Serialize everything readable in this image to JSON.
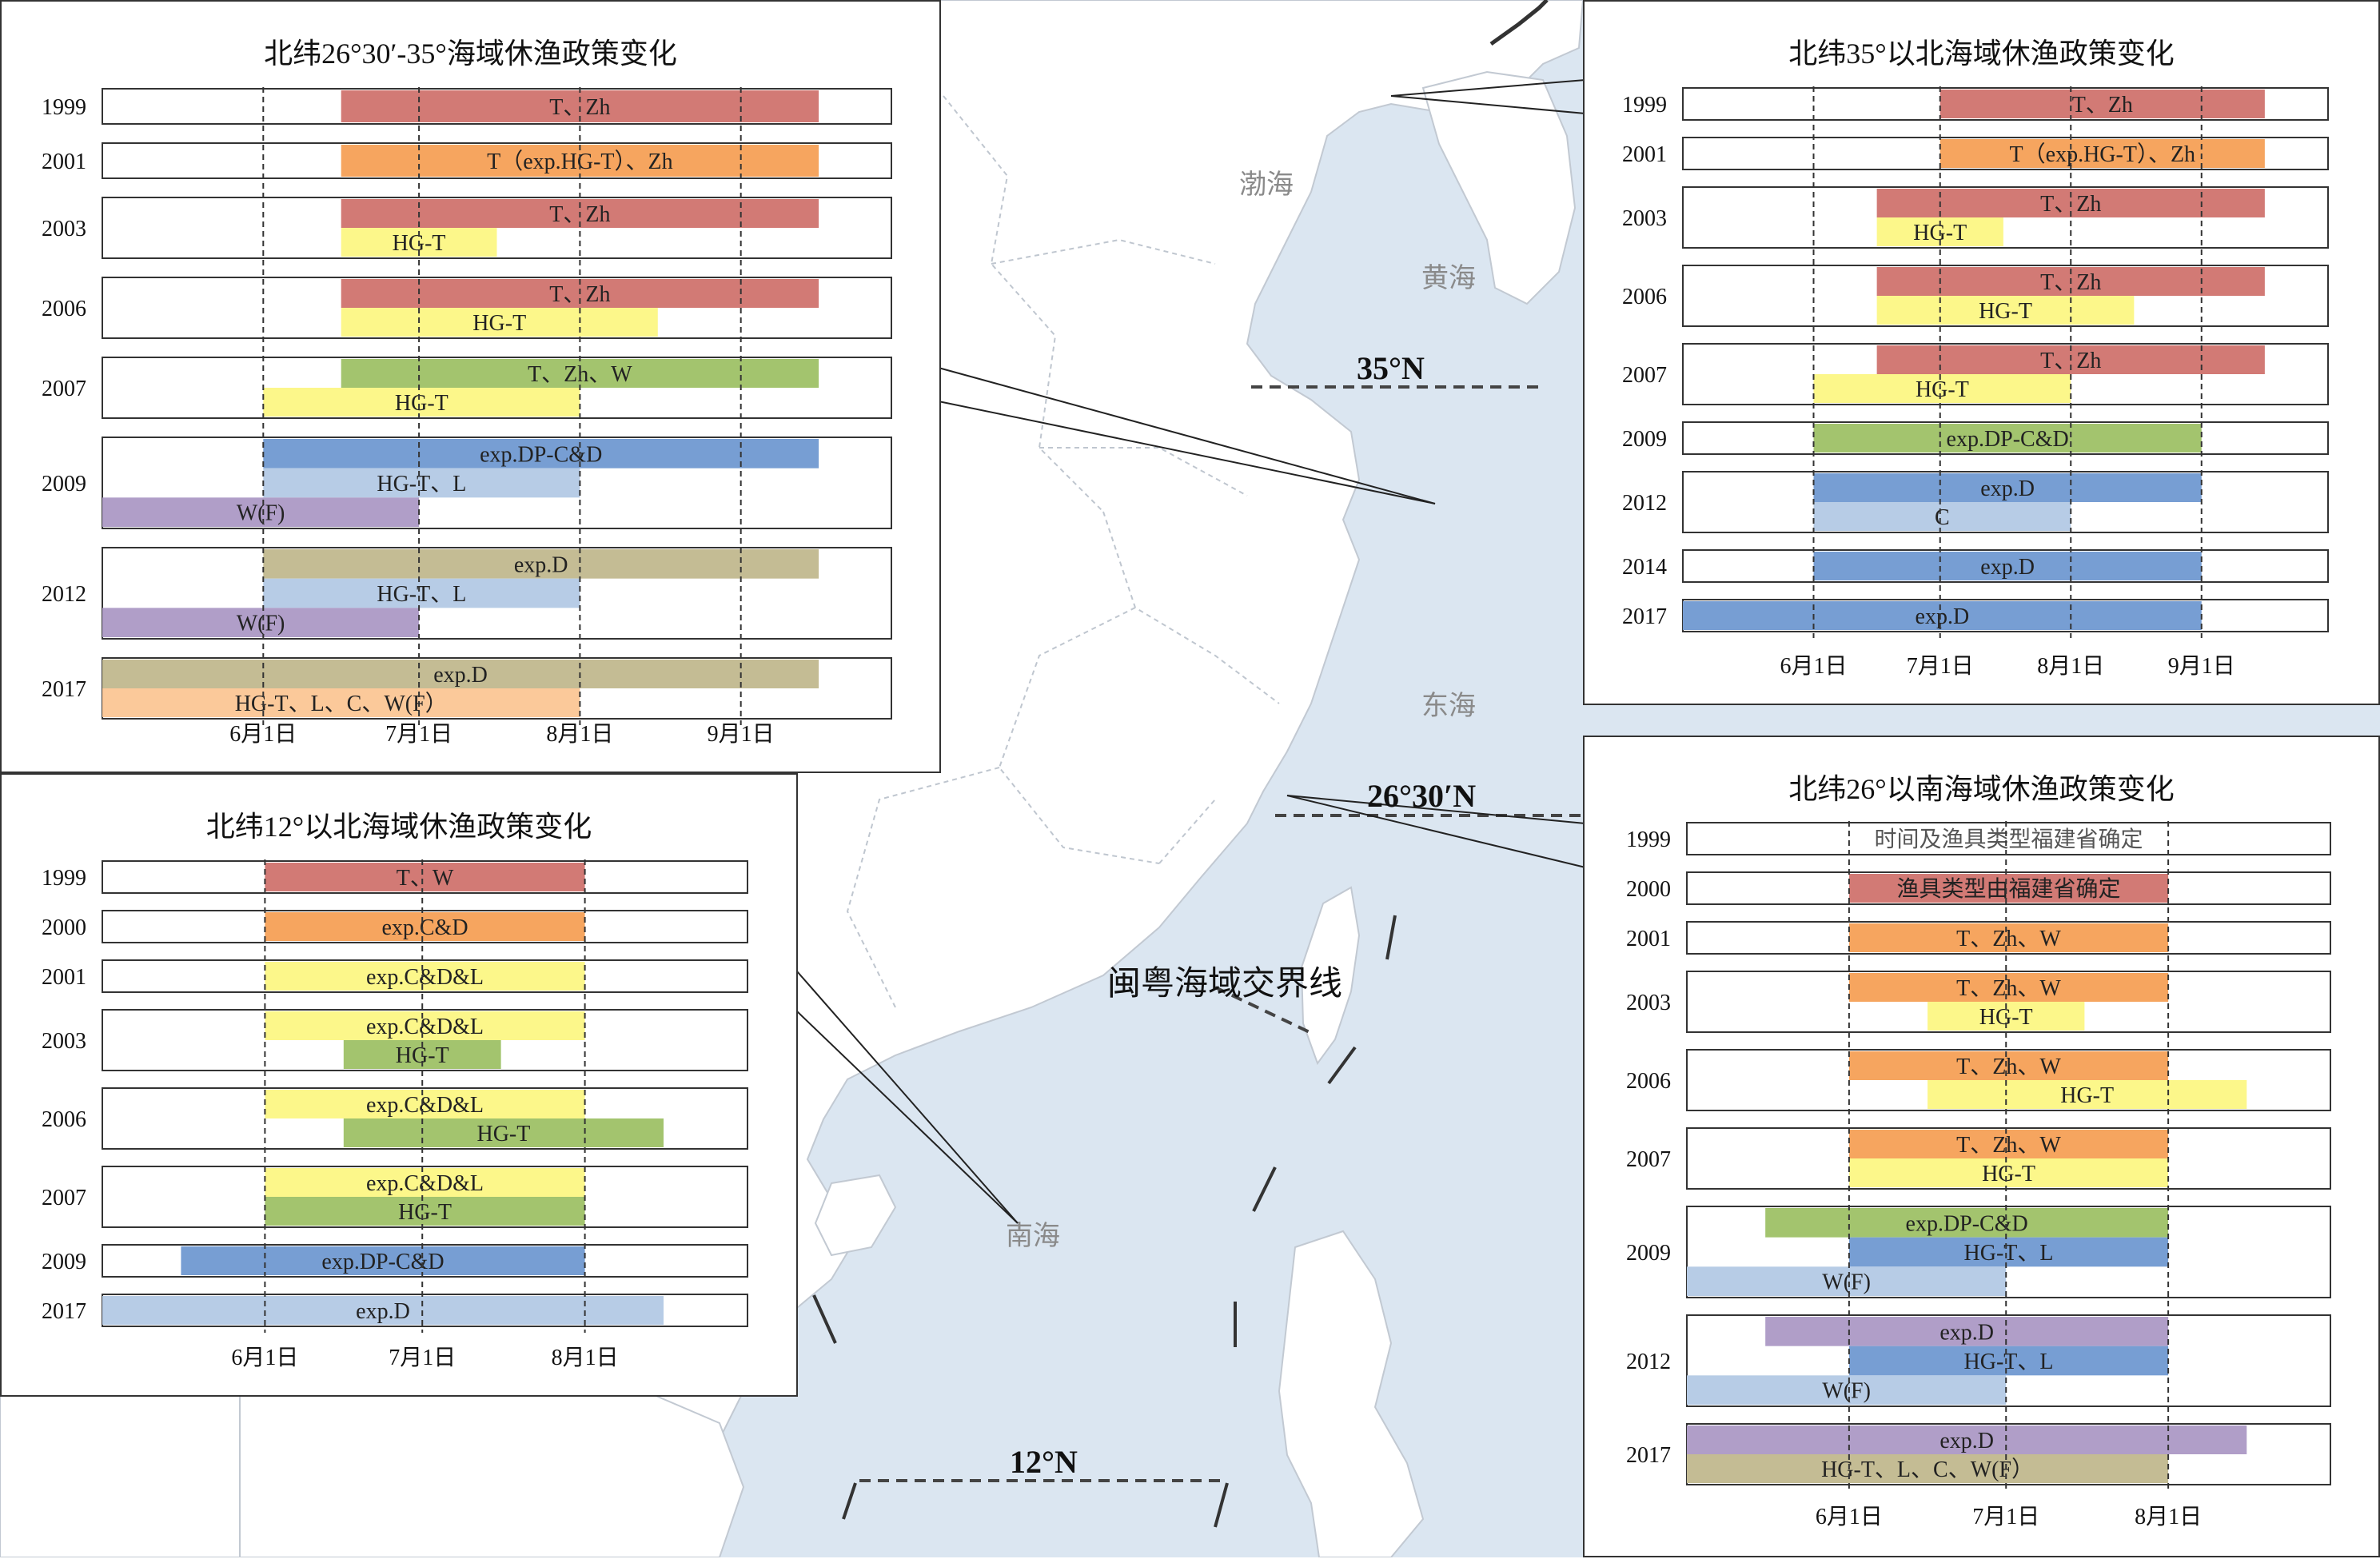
{
  "colors": {
    "sea": "#dbe6f1",
    "land": "#ffffff",
    "panel_border": "#333333",
    "bar_red": "#d27a75",
    "bar_orange": "#f6a55f",
    "bar_yellow": "#fcf78a",
    "bar_green": "#a3c46e",
    "bar_blue": "#779ed3",
    "bar_lightblue": "#b7cce6",
    "bar_purple": "#b09ec8",
    "bar_khaki": "#c4bc94",
    "bar_peach": "#fbc99a"
  },
  "map": {
    "sea_labels": {
      "bohai": "渤海",
      "huanghai": "黄海",
      "donghai": "东海",
      "nanhai": "南海"
    },
    "lat_labels": {
      "n35": "35°N",
      "n2630": "26°30′N",
      "n12": "12°N"
    },
    "border_label": "闽粤海域交界线"
  },
  "chart_data": [
    {
      "id": "p1",
      "type": "gantt",
      "title": "北纬26°30′-35°海域休渔政策变化",
      "xticks": [
        "6月1日",
        "7月1日",
        "8月1日",
        "9月1日"
      ],
      "xtick_days": [
        0,
        30,
        61,
        92
      ],
      "xlim_days": [
        -31,
        121
      ],
      "rows": [
        {
          "year": "1999",
          "bars": [
            {
              "label": "T、Zh",
              "start": 15,
              "end": 107,
              "color": "bar_red"
            }
          ]
        },
        {
          "year": "2001",
          "bars": [
            {
              "label": "T（exp.HG-T）、Zh",
              "start": 15,
              "end": 107,
              "color": "bar_orange"
            }
          ]
        },
        {
          "year": "2003",
          "bars": [
            {
              "label": "T、Zh",
              "start": 15,
              "end": 107,
              "color": "bar_red"
            },
            {
              "label": "HG-T",
              "start": 15,
              "end": 45,
              "color": "bar_yellow"
            }
          ]
        },
        {
          "year": "2006",
          "bars": [
            {
              "label": "T、Zh",
              "start": 15,
              "end": 107,
              "color": "bar_red"
            },
            {
              "label": "HG-T",
              "start": 15,
              "end": 76,
              "color": "bar_yellow"
            }
          ]
        },
        {
          "year": "2007",
          "bars": [
            {
              "label": "T、Zh、W",
              "start": 15,
              "end": 107,
              "color": "bar_green"
            },
            {
              "label": "HG-T",
              "start": 0,
              "end": 61,
              "color": "bar_yellow"
            }
          ]
        },
        {
          "year": "2009",
          "bars": [
            {
              "label": "exp.DP-C&D",
              "start": 0,
              "end": 107,
              "color": "bar_blue"
            },
            {
              "label": "HG-T、L",
              "start": 0,
              "end": 61,
              "color": "bar_lightblue"
            },
            {
              "label": "W(F)",
              "start": -31,
              "end": 30,
              "color": "bar_purple"
            }
          ]
        },
        {
          "year": "2012",
          "bars": [
            {
              "label": "exp.D",
              "start": 0,
              "end": 107,
              "color": "bar_khaki"
            },
            {
              "label": "HG-T、L",
              "start": 0,
              "end": 61,
              "color": "bar_lightblue"
            },
            {
              "label": "W(F)",
              "start": -31,
              "end": 30,
              "color": "bar_purple"
            }
          ]
        },
        {
          "year": "2017",
          "bars": [
            {
              "label": "exp.D",
              "start": -31,
              "end": 107,
              "color": "bar_khaki"
            },
            {
              "label": "HG-T、L、C、W(F）",
              "start": -31,
              "end": 61,
              "color": "bar_peach"
            }
          ]
        }
      ]
    },
    {
      "id": "p2",
      "type": "gantt",
      "title": "北纬35°以北海域休渔政策变化",
      "xticks": [
        "6月1日",
        "7月1日",
        "8月1日",
        "9月1日"
      ],
      "xtick_days": [
        0,
        30,
        61,
        92
      ],
      "xlim_days": [
        -31,
        122
      ],
      "rows": [
        {
          "year": "1999",
          "bars": [
            {
              "label": "T、Zh",
              "start": 30,
              "end": 107,
              "color": "bar_red"
            }
          ]
        },
        {
          "year": "2001",
          "bars": [
            {
              "label": "T（exp.HG-T）、Zh",
              "start": 30,
              "end": 107,
              "color": "bar_orange"
            }
          ]
        },
        {
          "year": "2003",
          "bars": [
            {
              "label": "T、Zh",
              "start": 15,
              "end": 107,
              "color": "bar_red"
            },
            {
              "label": "HG-T",
              "start": 15,
              "end": 45,
              "color": "bar_yellow"
            }
          ]
        },
        {
          "year": "2006",
          "bars": [
            {
              "label": "T、Zh",
              "start": 15,
              "end": 107,
              "color": "bar_red"
            },
            {
              "label": "HG-T",
              "start": 15,
              "end": 76,
              "color": "bar_yellow"
            }
          ]
        },
        {
          "year": "2007",
          "bars": [
            {
              "label": "T、Zh",
              "start": 15,
              "end": 107,
              "color": "bar_red"
            },
            {
              "label": "HG-T",
              "start": 0,
              "end": 61,
              "color": "bar_yellow"
            }
          ]
        },
        {
          "year": "2009",
          "bars": [
            {
              "label": "exp.DP-C&D",
              "start": 0,
              "end": 92,
              "color": "bar_green"
            }
          ]
        },
        {
          "year": "2012",
          "bars": [
            {
              "label": "exp.D",
              "start": 0,
              "end": 92,
              "color": "bar_blue"
            },
            {
              "label": "C",
              "start": 0,
              "end": 61,
              "color": "bar_lightblue"
            }
          ]
        },
        {
          "year": "2014",
          "bars": [
            {
              "label": "exp.D",
              "start": 0,
              "end": 92,
              "color": "bar_blue"
            }
          ]
        },
        {
          "year": "2017",
          "bars": [
            {
              "label": "exp.D",
              "start": -31,
              "end": 92,
              "color": "bar_blue"
            }
          ]
        }
      ]
    },
    {
      "id": "p3",
      "type": "gantt",
      "title": "北纬12°以北海域休渔政策变化",
      "xticks": [
        "6月1日",
        "7月1日",
        "8月1日"
      ],
      "xtick_days": [
        0,
        30,
        61
      ],
      "xlim_days": [
        -31,
        92
      ],
      "rows": [
        {
          "year": "1999",
          "bars": [
            {
              "label": "T、W",
              "start": 0,
              "end": 61,
              "color": "bar_red"
            }
          ]
        },
        {
          "year": "2000",
          "bars": [
            {
              "label": "exp.C&D",
              "start": 0,
              "end": 61,
              "color": "bar_orange"
            }
          ]
        },
        {
          "year": "2001",
          "bars": [
            {
              "label": "exp.C&D&L",
              "start": 0,
              "end": 61,
              "color": "bar_yellow"
            }
          ]
        },
        {
          "year": "2003",
          "bars": [
            {
              "label": "exp.C&D&L",
              "start": 0,
              "end": 61,
              "color": "bar_yellow"
            },
            {
              "label": "HG-T",
              "start": 15,
              "end": 45,
              "color": "bar_green"
            }
          ]
        },
        {
          "year": "2006",
          "bars": [
            {
              "label": "exp.C&D&L",
              "start": 0,
              "end": 61,
              "color": "bar_yellow"
            },
            {
              "label": "HG-T",
              "start": 15,
              "end": 76,
              "color": "bar_green"
            }
          ]
        },
        {
          "year": "2007",
          "bars": [
            {
              "label": "exp.C&D&L",
              "start": 0,
              "end": 61,
              "color": "bar_yellow"
            },
            {
              "label": "HG-T",
              "start": 0,
              "end": 61,
              "color": "bar_green"
            }
          ]
        },
        {
          "year": "2009",
          "bars": [
            {
              "label": "exp.DP-C&D",
              "start": -16,
              "end": 61,
              "color": "bar_blue"
            }
          ]
        },
        {
          "year": "2017",
          "bars": [
            {
              "label": "exp.D",
              "start": -31,
              "end": 76,
              "color": "bar_lightblue"
            }
          ]
        }
      ]
    },
    {
      "id": "p4",
      "type": "gantt",
      "title": "北纬26°以南海域休渔政策变化",
      "xticks": [
        "6月1日",
        "7月1日",
        "8月1日"
      ],
      "xtick_days": [
        0,
        30,
        61
      ],
      "xlim_days": [
        -31,
        92
      ],
      "rows": [
        {
          "year": "1999",
          "bars": [
            {
              "label": "时间及渔具类型福建省确定",
              "start": -31,
              "end": 92,
              "color": "",
              "text_color": "#555555"
            }
          ]
        },
        {
          "year": "2000",
          "bars": [
            {
              "label": "渔具类型由福建省确定",
              "start": 0,
              "end": 61,
              "color": "bar_red"
            }
          ]
        },
        {
          "year": "2001",
          "bars": [
            {
              "label": "T、Zh、W",
              "start": 0,
              "end": 61,
              "color": "bar_orange"
            }
          ]
        },
        {
          "year": "2003",
          "bars": [
            {
              "label": "T、Zh、W",
              "start": 0,
              "end": 61,
              "color": "bar_orange"
            },
            {
              "label": "HG-T",
              "start": 15,
              "end": 45,
              "color": "bar_yellow"
            }
          ]
        },
        {
          "year": "2006",
          "bars": [
            {
              "label": "T、Zh、W",
              "start": 0,
              "end": 61,
              "color": "bar_orange"
            },
            {
              "label": "HG-T",
              "start": 15,
              "end": 76,
              "color": "bar_yellow"
            }
          ]
        },
        {
          "year": "2007",
          "bars": [
            {
              "label": "T、Zh、W",
              "start": 0,
              "end": 61,
              "color": "bar_orange"
            },
            {
              "label": "HG-T",
              "start": 0,
              "end": 61,
              "color": "bar_yellow"
            }
          ]
        },
        {
          "year": "2009",
          "bars": [
            {
              "label": "exp.DP-C&D",
              "start": -16,
              "end": 61,
              "color": "bar_green"
            },
            {
              "label": "HG-T、L",
              "start": 0,
              "end": 61,
              "color": "bar_blue"
            },
            {
              "label": "W(F)",
              "start": -31,
              "end": 30,
              "color": "bar_lightblue"
            }
          ]
        },
        {
          "year": "2012",
          "bars": [
            {
              "label": "exp.D",
              "start": -16,
              "end": 61,
              "color": "bar_purple"
            },
            {
              "label": "HG-T、L",
              "start": 0,
              "end": 61,
              "color": "bar_blue"
            },
            {
              "label": "W(F)",
              "start": -31,
              "end": 30,
              "color": "bar_lightblue"
            }
          ]
        },
        {
          "year": "2017",
          "bars": [
            {
              "label": "exp.D",
              "start": -31,
              "end": 76,
              "color": "bar_purple"
            },
            {
              "label": "HG-T、L、C、W(F）",
              "start": -31,
              "end": 61,
              "color": "bar_khaki"
            }
          ]
        }
      ]
    }
  ]
}
